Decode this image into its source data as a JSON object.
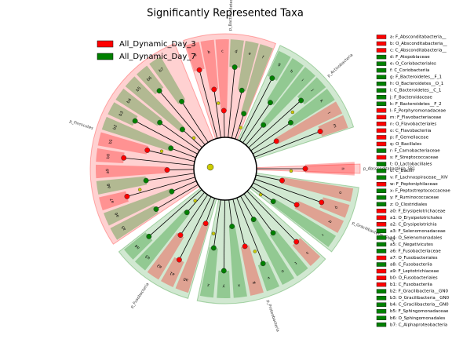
{
  "title": "Significantly Represented Taxa",
  "legend": [
    {
      "label": "All_Dynamic_Day_3",
      "color": "#ff0000"
    },
    {
      "label": "All_Dynamic_Day_7",
      "color": "#008000"
    }
  ],
  "phyla": [
    {
      "label": "p_Bacteroidetes",
      "color": "#ff0000"
    },
    {
      "label": "p_Actinobacteria",
      "color": "#008000"
    },
    {
      "label": "p_Absconditabacteria_SR1",
      "color": "#ff0000"
    },
    {
      "label": "p_Gracilibacteria_GN02",
      "color": "#008000"
    },
    {
      "label": "p_Proteobacteria",
      "color": "#008000"
    },
    {
      "label": "p_Fusobacteria",
      "color": "#008000"
    },
    {
      "label": "p_Firmicutes",
      "color": "#ff0000"
    }
  ],
  "key": [
    {
      "id": "a",
      "text": "a: F_Absconditabacteria__",
      "color": "#ff0000"
    },
    {
      "id": "b",
      "text": "b: O_Absconditabacteria__",
      "color": "#ff0000"
    },
    {
      "id": "c",
      "text": "c: C_Absconditabacteria__",
      "color": "#ff0000"
    },
    {
      "id": "d",
      "text": "d: F_Atopobiaceae",
      "color": "#008000"
    },
    {
      "id": "e",
      "text": "e: O_Coriobacteriales",
      "color": "#008000"
    },
    {
      "id": "f",
      "text": "f: C_Coriobacteriia",
      "color": "#008000"
    },
    {
      "id": "g",
      "text": "g: F_Bacteroidetes__F_1",
      "color": "#008000"
    },
    {
      "id": "h",
      "text": "h: O_Bacteroidetes__O_1",
      "color": "#008000"
    },
    {
      "id": "i",
      "text": "i: C_Bacteroidetes__C_1",
      "color": "#008000"
    },
    {
      "id": "j",
      "text": "j: F_Bacteroidaceae",
      "color": "#008000"
    },
    {
      "id": "k",
      "text": "k: F_Bacteroidetes__F_2",
      "color": "#008000"
    },
    {
      "id": "l",
      "text": "l: F_Porphyromonadaceae",
      "color": "#ff0000"
    },
    {
      "id": "m",
      "text": "m: F_Flavobacteriaceae",
      "color": "#ff0000"
    },
    {
      "id": "n",
      "text": "n: O_Flavobacteriales",
      "color": "#ff0000"
    },
    {
      "id": "o",
      "text": "o: C_Flavobacteriia",
      "color": "#ff0000"
    },
    {
      "id": "p",
      "text": "p: F_Gemellaceae",
      "color": "#ff0000"
    },
    {
      "id": "q",
      "text": "q: O_Bacillales",
      "color": "#ff0000"
    },
    {
      "id": "r",
      "text": "r: F_Carnobacteriaceae",
      "color": "#008000"
    },
    {
      "id": "s",
      "text": "s: F_Streptococcaceae",
      "color": "#ff0000"
    },
    {
      "id": "t",
      "text": "t: O_Lactobacillales",
      "color": "#008000"
    },
    {
      "id": "u",
      "text": "u: C_Bacilli",
      "color": "#008000"
    },
    {
      "id": "v",
      "text": "v: F_Lachnospiraceae__XIV",
      "color": "#008000"
    },
    {
      "id": "w",
      "text": "w: F_Peptoniphilaceae",
      "color": "#ff0000"
    },
    {
      "id": "x",
      "text": "x: F_Peptostreptococcaceae",
      "color": "#008000"
    },
    {
      "id": "y",
      "text": "y: F_Ruminococcaceae",
      "color": "#008000"
    },
    {
      "id": "z",
      "text": "z: O_Clostridiales",
      "color": "#008000"
    },
    {
      "id": "a0",
      "text": "a0: F_Erysipelotrichaceae",
      "color": "#ff0000"
    },
    {
      "id": "a1",
      "text": "a1: O_Erysipelotrichales",
      "color": "#ff0000"
    },
    {
      "id": "a2",
      "text": "a2: C_Erysipelotrichia",
      "color": "#ff0000"
    },
    {
      "id": "a3",
      "text": "a3: F_Selenomonadaceae",
      "color": "#008000"
    },
    {
      "id": "a4",
      "text": "a4: O_Selenomonadales",
      "color": "#008000"
    },
    {
      "id": "a5",
      "text": "a5: C_Negativicutes",
      "color": "#008000"
    },
    {
      "id": "a6",
      "text": "a6: F_Fusobacteriaceae",
      "color": "#008000"
    },
    {
      "id": "a7",
      "text": "a7: O_Fusobacteriales",
      "color": "#ff0000"
    },
    {
      "id": "a8",
      "text": "a8: C_Fusobacteriia",
      "color": "#008000"
    },
    {
      "id": "a9",
      "text": "a9: F_Leptotrichiaceae",
      "color": "#ff0000"
    },
    {
      "id": "b0",
      "text": "b0: O_Fusobacteriales",
      "color": "#ff0000"
    },
    {
      "id": "b1",
      "text": "b1: C_Fusobacteriia",
      "color": "#ff0000"
    },
    {
      "id": "b2",
      "text": "b2: F_Gracilibacteria__GN0",
      "color": "#008000"
    },
    {
      "id": "b3",
      "text": "b3: O_Gracilibacteria__GN0",
      "color": "#008000"
    },
    {
      "id": "b4",
      "text": "b4: C_Gracilibacteria__GN0",
      "color": "#008000"
    },
    {
      "id": "b5",
      "text": "b5: F_Sphingomonadaceae",
      "color": "#008000"
    },
    {
      "id": "b6",
      "text": "b6: O_Sphingomonadales",
      "color": "#008000"
    },
    {
      "id": "b7",
      "text": "b7: C_Alphaproteobacteria",
      "color": "#008000"
    }
  ]
}
